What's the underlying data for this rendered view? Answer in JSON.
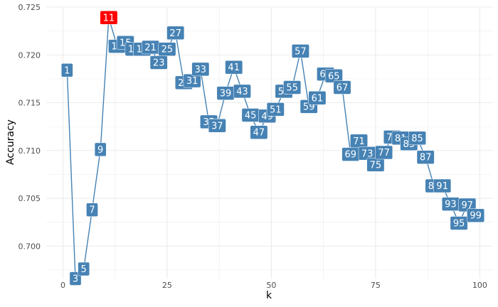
{
  "chart_data": {
    "type": "line",
    "title": "",
    "xlabel": "k",
    "ylabel": "Accuracy",
    "xlim": [
      -4,
      103
    ],
    "ylim": [
      0.6966,
      0.725
    ],
    "x_ticks": [
      0,
      25,
      50,
      75,
      100
    ],
    "y_ticks": [
      0.7,
      0.705,
      0.71,
      0.715,
      0.72,
      0.725
    ],
    "y_tick_labels": [
      "0.700",
      "0.705",
      "0.710",
      "0.715",
      "0.720",
      "0.725"
    ],
    "x": [
      1,
      3,
      5,
      7,
      9,
      11,
      13,
      15,
      17,
      19,
      21,
      23,
      25,
      27,
      29,
      31,
      33,
      35,
      37,
      39,
      41,
      43,
      45,
      47,
      49,
      51,
      53,
      55,
      57,
      59,
      61,
      63,
      65,
      67,
      69,
      71,
      73,
      75,
      77,
      79,
      81,
      83,
      85,
      87,
      89,
      91,
      93,
      95,
      97,
      99
    ],
    "y": [
      0.7184,
      0.6966,
      0.6976,
      0.7038,
      0.7101,
      0.7239,
      0.7209,
      0.7213,
      0.7206,
      0.7206,
      0.7208,
      0.7192,
      0.7206,
      0.7223,
      0.7171,
      0.7173,
      0.7185,
      0.713,
      0.7126,
      0.716,
      0.7187,
      0.7162,
      0.7137,
      0.7119,
      0.7136,
      0.7143,
      0.7162,
      0.7166,
      0.7204,
      0.7146,
      0.7155,
      0.718,
      0.7178,
      0.7166,
      0.7096,
      0.711,
      0.7097,
      0.7085,
      0.7098,
      0.7114,
      0.7113,
      0.7107,
      0.7113,
      0.7093,
      0.7063,
      0.7063,
      0.7044,
      0.7024,
      0.7043,
      0.7032
    ],
    "labels": [
      "1",
      "3",
      "5",
      "7",
      "9",
      "11",
      "13",
      "15",
      "17",
      "19",
      "21",
      "23",
      "25",
      "27",
      "29",
      "31",
      "33",
      "35",
      "37",
      "39",
      "41",
      "43",
      "45",
      "47",
      "49",
      "51",
      "53",
      "55",
      "57",
      "59",
      "61",
      "63",
      "65",
      "67",
      "69",
      "71",
      "73",
      "75",
      "77",
      "79",
      "81",
      "83",
      "85",
      "87",
      "89",
      "91",
      "93",
      "95",
      "97",
      "99"
    ],
    "highlight_index": 5,
    "colors": {
      "line": "#4682b4",
      "label_fill": "#4682b4",
      "highlight_fill": "#ff0000",
      "label_text": "#ffffff",
      "grid": "#ebebeb"
    },
    "grid": true,
    "legend": "none"
  }
}
